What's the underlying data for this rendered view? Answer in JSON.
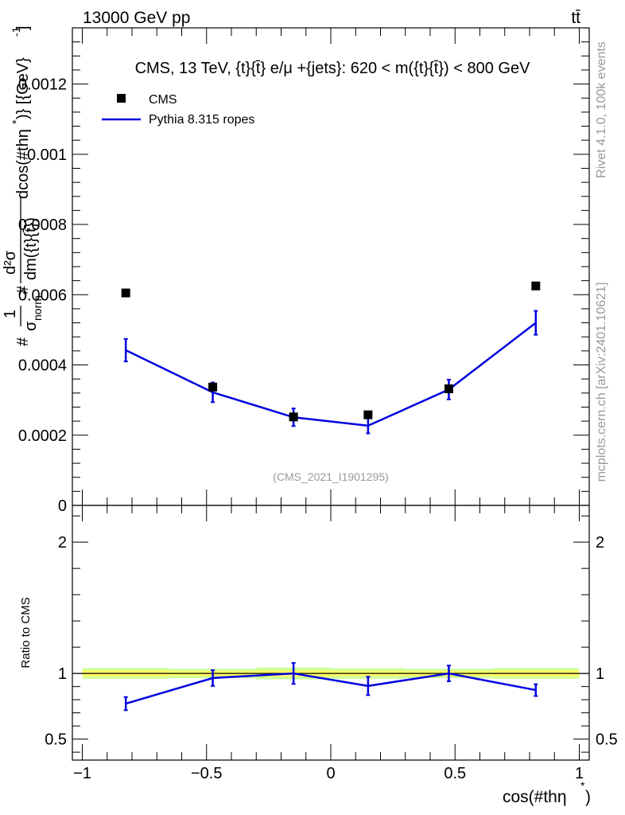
{
  "header": {
    "energy_label": "13000 GeV pp",
    "process_label": "tt̄"
  },
  "side_labels": {
    "rivet": "Rivet 4.1.0,  100k events",
    "mcplots": "mcplots.cern.ch [arXiv:2401.10621]"
  },
  "colors": {
    "mc": "#0000e0",
    "data": "#000000",
    "band_inner": "#ffff66",
    "band_outer": "#ccff99",
    "watermark": "#999999"
  },
  "chart_data": [
    {
      "type": "scatter",
      "name": "main-panel",
      "title": "CMS, 13 TeV, {t}{t̄} e/μ +{jets}: 620 < m({t}{t̄}) < 800 GeV",
      "watermark": "(CMS_2021_I1901295)",
      "ylabel": "#1/σ_norm # d²σ/dm({t}{t̄}) dcos(#thη*)} [{GeV}⁻¹]",
      "ylabel_parts": {
        "hash": "#",
        "one": "1",
        "sigma_norm": "σ",
        "norm_sub": "norm",
        "hash2": "#",
        "numerator": "d²σ",
        "denominator": "dm({t}{t̄})",
        "rest": "dcos(#thη",
        "rest_sup": "*",
        "units": ")} [{GeV}",
        "units_sup": "-1",
        "units_end": "]"
      },
      "xlim": [
        -1.04,
        1.04
      ],
      "ylim": [
        0,
        0.00136
      ],
      "yticks": [
        0,
        0.0002,
        0.0004,
        0.0006,
        0.0008,
        0.001,
        0.0012
      ],
      "ytick_labels": [
        "0",
        "0.0002",
        "0.0004",
        "0.0006",
        "0.0008",
        "0.001",
        "0.0012"
      ],
      "legend_position": "top-left",
      "series": [
        {
          "name": "CMS",
          "style": "markers",
          "x": [
            -0.825,
            -0.475,
            -0.15,
            0.15,
            0.475,
            0.825
          ],
          "values": [
            0.000605,
            0.000337,
            0.000252,
            0.000258,
            0.000332,
            0.000625
          ]
        },
        {
          "name": "Pythia 8.315 ropes",
          "style": "line",
          "x": [
            -0.825,
            -0.475,
            -0.15,
            0.15,
            0.475,
            0.825
          ],
          "values": [
            0.000442,
            0.000322,
            0.000251,
            0.000227,
            0.00033,
            0.00052
          ],
          "errors": [
            3.2e-05,
            2.8e-05,
            2.5e-05,
            2.2e-05,
            2.8e-05,
            3.4e-05
          ]
        }
      ]
    },
    {
      "type": "line",
      "name": "ratio-panel",
      "xlabel": "cos(#thη",
      "xlabel_sup": "*",
      "xlabel_end": ")",
      "ylabel": "Ratio to CMS",
      "xlim": [
        -1.04,
        1.04
      ],
      "ylim": [
        0.34,
        2.28
      ],
      "yticks": [
        0.5,
        1,
        2
      ],
      "ytick_labels": [
        "0.5",
        "1",
        "2"
      ],
      "xticks": [
        -1,
        -0.5,
        0,
        0.5,
        1
      ],
      "xtick_labels": [
        "−1",
        "−0.5",
        "0",
        "0.5",
        "1"
      ],
      "bins": [
        -1,
        -0.65,
        -0.3,
        0,
        0.3,
        0.65,
        1
      ],
      "band_inner": [
        0.025,
        0.02,
        0.025,
        0.02,
        0.02,
        0.025
      ],
      "band_outer": [
        0.04,
        0.035,
        0.045,
        0.04,
        0.035,
        0.04
      ],
      "series": [
        {
          "name": "Pythia 8.315 ropes / CMS",
          "x": [
            -0.825,
            -0.475,
            -0.15,
            0.15,
            0.475,
            0.825
          ],
          "values": [
            0.77,
            0.965,
            1.0,
            0.905,
            1.0,
            0.873
          ],
          "errors": [
            0.05,
            0.06,
            0.08,
            0.07,
            0.06,
            0.045
          ]
        }
      ]
    }
  ]
}
